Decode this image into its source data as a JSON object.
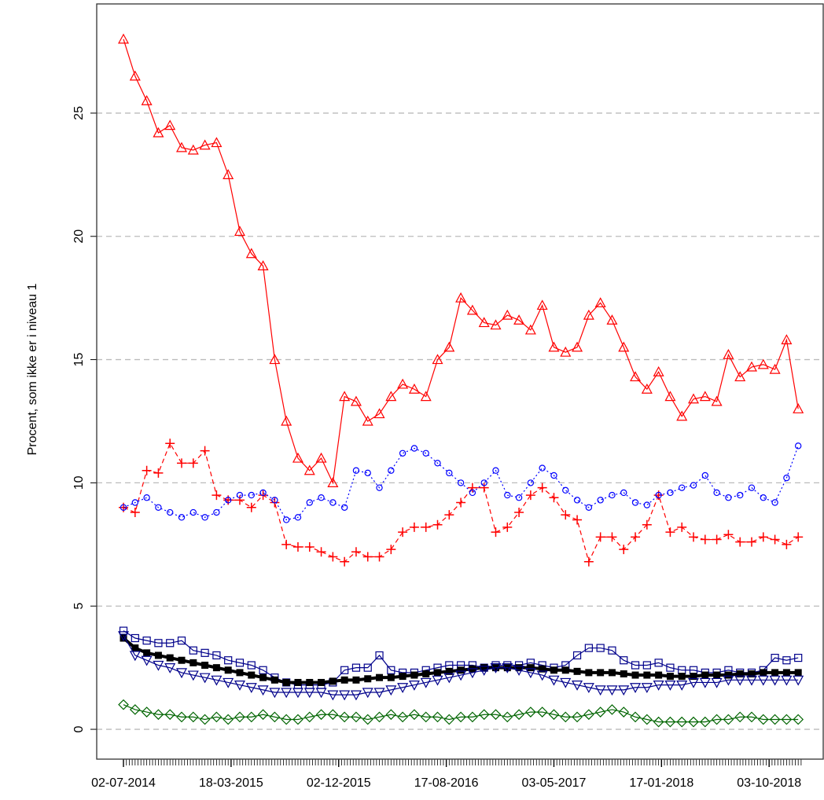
{
  "chart_data": {
    "type": "line",
    "y_label": "Procent, som ikke er i niveau 1",
    "x": [
      0,
      4,
      8,
      12,
      16,
      20,
      24,
      28,
      32,
      36,
      40,
      44,
      48,
      52,
      56,
      60,
      64,
      68,
      72,
      76,
      80,
      84,
      88,
      92,
      96,
      100,
      104,
      108,
      112,
      116,
      120,
      124,
      128,
      132,
      136,
      140,
      144,
      148,
      152,
      156,
      160,
      164,
      168,
      172,
      176,
      180,
      184,
      188,
      192,
      196,
      200,
      204,
      208,
      212,
      216,
      220,
      224,
      228,
      232
    ],
    "xlim": [
      -9.2,
      240.6
    ],
    "xticks": [
      {
        "value": 0,
        "label": "02-07-2014"
      },
      {
        "value": 37,
        "label": "18-03-2015"
      },
      {
        "value": 74,
        "label": "02-12-2015"
      },
      {
        "value": 111,
        "label": "17-08-2016"
      },
      {
        "value": 148,
        "label": "03-05-2017"
      },
      {
        "value": 185,
        "label": "17-01-2018"
      },
      {
        "value": 222,
        "label": "03-10-2018"
      }
    ],
    "ylim": [
      -1.21,
      29.43
    ],
    "yticks": [
      0,
      5,
      10,
      15,
      20,
      25
    ],
    "grid": true,
    "series": [
      {
        "color": "#ff0000",
        "marker": "triangle",
        "dash": "solid",
        "values": [
          28,
          26.5,
          25.5,
          24.2,
          24.5,
          23.6,
          23.5,
          23.7,
          23.8,
          22.5,
          20.2,
          19.3,
          18.8,
          15,
          12.5,
          11,
          10.5,
          11,
          10,
          13.5,
          13.3,
          12.5,
          12.8,
          13.5,
          14,
          13.8,
          13.5,
          15,
          15.5,
          17.5,
          17,
          16.5,
          16.4,
          16.8,
          16.6,
          16.2,
          17.2,
          15.5,
          15.3,
          15.5,
          16.8,
          17.3,
          16.6,
          15.5,
          14.3,
          13.8,
          14.5,
          13.5,
          12.7,
          13.4,
          13.5,
          13.3,
          15.2,
          14.3,
          14.7,
          14.8,
          14.6,
          15.8,
          13
        ]
      },
      {
        "color": "#ff0000",
        "marker": "plus",
        "dash": "dashed",
        "values": [
          9,
          8.8,
          10.5,
          10.4,
          11.6,
          10.8,
          10.8,
          11.3,
          9.5,
          9.3,
          9.3,
          9,
          9.5,
          9.2,
          7.5,
          7.4,
          7.4,
          7.2,
          7,
          6.8,
          7.2,
          7,
          7,
          7.3,
          8,
          8.2,
          8.2,
          8.3,
          8.7,
          9.2,
          9.8,
          9.8,
          8,
          8.2,
          8.8,
          9.5,
          9.8,
          9.4,
          8.7,
          8.5,
          6.8,
          7.8,
          7.8,
          7.3,
          7.8,
          8.3,
          9.5,
          8,
          8.2,
          7.8,
          7.7,
          7.7,
          7.9,
          7.6,
          7.6,
          7.8,
          7.7,
          7.5,
          7.8
        ]
      },
      {
        "color": "#0000ff",
        "marker": "circle",
        "dash": "dotted",
        "values": [
          9,
          9.2,
          9.4,
          9,
          8.8,
          8.6,
          8.8,
          8.6,
          8.8,
          9.3,
          9.5,
          9.5,
          9.6,
          9.3,
          8.5,
          8.6,
          9.2,
          9.4,
          9.2,
          9,
          10.5,
          10.4,
          9.8,
          10.5,
          11.2,
          11.4,
          11.2,
          10.8,
          10.4,
          10,
          9.6,
          10,
          10.5,
          9.5,
          9.4,
          10,
          10.6,
          10.3,
          9.7,
          9.3,
          9,
          9.3,
          9.5,
          9.6,
          9.2,
          9.1,
          9.5,
          9.6,
          9.8,
          9.9,
          10.3,
          9.6,
          9.4,
          9.5,
          9.8,
          9.4,
          9.2,
          10.2,
          11.5
        ]
      },
      {
        "color": "#00008b",
        "marker": "square",
        "dash": "solid",
        "values": [
          4,
          3.7,
          3.6,
          3.5,
          3.5,
          3.6,
          3.2,
          3.1,
          3,
          2.8,
          2.7,
          2.6,
          2.4,
          2.1,
          1.9,
          1.8,
          1.8,
          1.8,
          1.9,
          2.4,
          2.5,
          2.5,
          3,
          2.4,
          2.3,
          2.3,
          2.4,
          2.5,
          2.6,
          2.6,
          2.6,
          2.5,
          2.6,
          2.6,
          2.6,
          2.7,
          2.6,
          2.5,
          2.6,
          3,
          3.3,
          3.3,
          3.2,
          2.8,
          2.6,
          2.6,
          2.7,
          2.5,
          2.4,
          2.4,
          2.3,
          2.3,
          2.4,
          2.3,
          2.3,
          2.4,
          2.9,
          2.8,
          2.9
        ]
      },
      {
        "color": "#000000",
        "marker": "filled-square",
        "dash": "thick",
        "values": [
          3.7,
          3.3,
          3.1,
          3.0,
          2.9,
          2.8,
          2.7,
          2.6,
          2.5,
          2.4,
          2.3,
          2.2,
          2.1,
          2.0,
          1.9,
          1.9,
          1.9,
          1.9,
          1.95,
          2.0,
          2.0,
          2.05,
          2.1,
          2.1,
          2.15,
          2.2,
          2.25,
          2.3,
          2.35,
          2.4,
          2.45,
          2.5,
          2.5,
          2.5,
          2.5,
          2.5,
          2.45,
          2.4,
          2.4,
          2.35,
          2.3,
          2.3,
          2.3,
          2.25,
          2.2,
          2.2,
          2.2,
          2.15,
          2.15,
          2.15,
          2.2,
          2.2,
          2.2,
          2.25,
          2.25,
          2.3,
          2.3,
          2.3,
          2.3
        ]
      },
      {
        "color": "#00008b",
        "marker": "down-triangle",
        "dash": "solid",
        "values": [
          3.8,
          3.0,
          2.8,
          2.6,
          2.5,
          2.3,
          2.2,
          2.1,
          2.0,
          1.9,
          1.8,
          1.7,
          1.6,
          1.5,
          1.5,
          1.5,
          1.5,
          1.5,
          1.4,
          1.4,
          1.4,
          1.5,
          1.5,
          1.6,
          1.7,
          1.8,
          1.9,
          2.0,
          2.1,
          2.2,
          2.3,
          2.4,
          2.5,
          2.5,
          2.4,
          2.3,
          2.2,
          2.0,
          1.9,
          1.8,
          1.7,
          1.6,
          1.6,
          1.6,
          1.7,
          1.7,
          1.8,
          1.8,
          1.8,
          1.9,
          1.9,
          1.9,
          2.0,
          2.0,
          2.0,
          2.0,
          2.0,
          2.0,
          2.0
        ]
      },
      {
        "color": "#006400",
        "marker": "diamond",
        "dash": "solid",
        "values": [
          1.0,
          0.8,
          0.7,
          0.6,
          0.6,
          0.5,
          0.5,
          0.4,
          0.5,
          0.4,
          0.5,
          0.5,
          0.6,
          0.5,
          0.4,
          0.4,
          0.5,
          0.6,
          0.6,
          0.5,
          0.5,
          0.4,
          0.5,
          0.6,
          0.5,
          0.6,
          0.5,
          0.5,
          0.4,
          0.5,
          0.5,
          0.6,
          0.6,
          0.5,
          0.6,
          0.7,
          0.7,
          0.6,
          0.5,
          0.5,
          0.6,
          0.7,
          0.8,
          0.7,
          0.5,
          0.4,
          0.3,
          0.3,
          0.3,
          0.3,
          0.3,
          0.4,
          0.4,
          0.5,
          0.5,
          0.4,
          0.4,
          0.4,
          0.4
        ]
      }
    ]
  }
}
